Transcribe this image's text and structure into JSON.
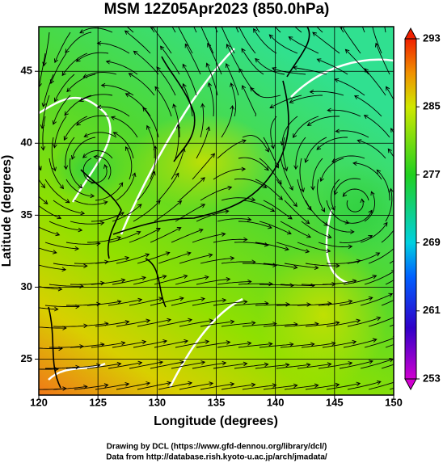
{
  "title": "MSM 12Z05Apr2023 (850.0hPa)",
  "x_axis": {
    "label": "Longitude (degrees)",
    "lim": [
      120,
      150
    ],
    "ticks": [
      120,
      125,
      130,
      135,
      140,
      145,
      150
    ]
  },
  "y_axis": {
    "label": "Latitude  (degrees)",
    "lim": [
      22.5,
      48.1
    ],
    "ticks": [
      25,
      30,
      35,
      40,
      45
    ]
  },
  "colorbar": {
    "lim": [
      253,
      293
    ],
    "ticks": [
      253,
      261,
      269,
      277,
      285,
      293
    ]
  },
  "credits": [
    "Drawing by DCL (https://www.gfd-dennou.org/library/dcl/)",
    "Data from http://database.rish.kyoto-u.ac.jp/arch/jmadata/"
  ]
}
